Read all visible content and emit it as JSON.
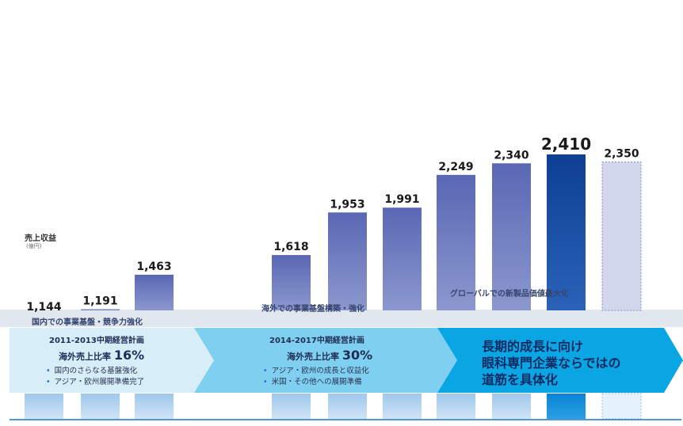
{
  "chart_data": {
    "type": "bar",
    "values": [
      1144,
      1191,
      1463,
      1618,
      1953,
      1991,
      2249,
      2340,
      2410,
      2350
    ],
    "value_labels": [
      "1,144",
      "1,191",
      "1,463",
      "1,618",
      "1,953",
      "1,991",
      "2,249",
      "2,340",
      "2,410",
      "2,350"
    ],
    "ylabel": "売上収益",
    "yunit": "(億円)",
    "ylim": [
      0,
      2450
    ],
    "colors": {
      "bar_gradient_top": "#5a67b4",
      "bar_gradient_bottom": "#8996cc",
      "highlight_top": "#0d3f94",
      "highlight_bottom": "#2a63b8",
      "forecast_fill": "#d3d7ee",
      "forecast_border": "#7f88c3"
    }
  },
  "bands": {
    "domestic": "国内での事業基盤・競争力強化",
    "overseas": "海外での事業基盤構築・強化",
    "global": "グローバルでの新製品価値最大化"
  },
  "phases": [
    {
      "title": "2011-2013中期経営計画",
      "ratio_label": "海外売上比率",
      "ratio_value": "16%",
      "bullets": [
        "国内のさらなる基盤強化",
        "アジア・欧州展開準備完了"
      ],
      "color": "#d7edf8"
    },
    {
      "title": "2014-2017中期経営計画",
      "ratio_label": "海外売上比率",
      "ratio_value": "30%",
      "bullets": [
        "アジア・欧州の成長と収益化",
        "米国・その他への展開準備"
      ],
      "color": "#7fd0f0"
    },
    {
      "message_lines": [
        "長期的成長に向け",
        "眼科専門企業ならではの",
        "道筋を具体化"
      ],
      "color": "#0aa6e4"
    }
  ]
}
